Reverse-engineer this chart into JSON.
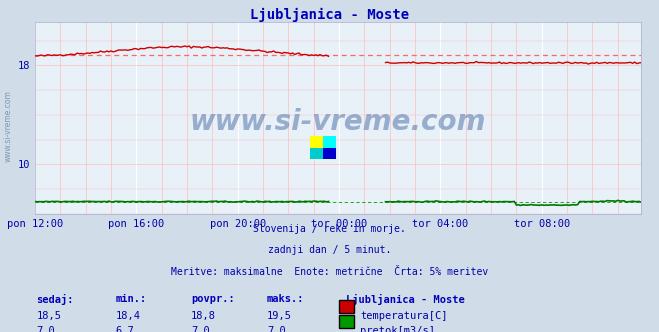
{
  "title": "Ljubljanica - Moste",
  "bg_color": "#d0dde8",
  "plot_bg_color": "#e8f0f8",
  "grid_color_major": "#ffffff",
  "grid_color_minor": "#ffbbbb",
  "xlabel_ticks": [
    "pon 12:00",
    "pon 16:00",
    "pon 20:00",
    "tor 00:00",
    "tor 04:00",
    "tor 08:00"
  ],
  "ylim": [
    6.0,
    21.5
  ],
  "xlim": [
    0,
    287
  ],
  "ylabel_ticks": [
    10,
    18
  ],
  "temp_avg": 18.8,
  "temp_color": "#cc0000",
  "temp_avg_color": "#ff6666",
  "flow_color": "#007700",
  "flow_avg_color": "#009900",
  "title_color": "#0000bb",
  "text_color": "#0000aa",
  "subtitle_text": [
    "Slovenija / reke in morje.",
    "zadnji dan / 5 minut.",
    "Meritve: maksimalne  Enote: metrične  Črta: 5% meritev"
  ],
  "legend_title": "Ljubljanica - Moste",
  "legend_items": [
    "temperatura[C]",
    "pretok[m3/s]"
  ],
  "legend_colors": [
    "#cc0000",
    "#009900"
  ],
  "table_headers": [
    "sedaj:",
    "min.:",
    "povpr.:",
    "maks.:"
  ],
  "table_row1": [
    "18,5",
    "18,4",
    "18,8",
    "19,5"
  ],
  "table_row2": [
    "7,0",
    "6,7",
    "7,0",
    "7,0"
  ],
  "watermark": "www.si-vreme.com",
  "sidewmark": "www.si-vreme.com"
}
